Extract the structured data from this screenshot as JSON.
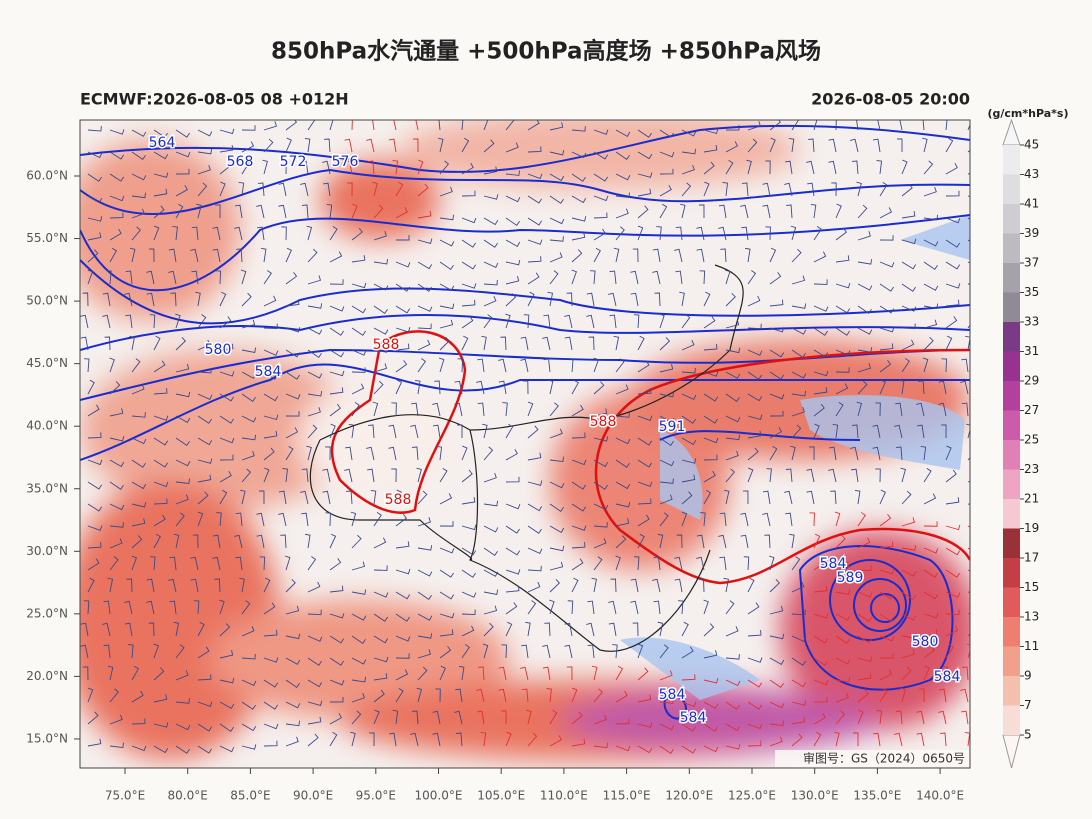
{
  "header": {
    "title": "850hPa水汽通量 +500hPa高度场 +850hPa风场",
    "model_run": "ECMWF:2026-08-05 08 +012H",
    "valid_time": "2026-08-05 20:00"
  },
  "map": {
    "lon_ticks": [
      "75.0°E",
      "80.0°E",
      "85.0°E",
      "90.0°E",
      "95.0°E",
      "100.0°E",
      "105.0°E",
      "110.0°E",
      "115.0°E",
      "120.0°E",
      "125.0°E",
      "130.0°E",
      "135.0°E",
      "140.0°E"
    ],
    "lat_ticks": [
      "60.0°N",
      "55.0°N",
      "50.0°N",
      "45.0°N",
      "40.0°N",
      "35.0°N",
      "30.0°N",
      "25.0°N",
      "20.0°N",
      "15.0°N"
    ],
    "contour_labels": [
      564,
      568,
      572,
      576,
      580,
      584,
      588,
      588,
      588,
      591,
      584,
      589,
      580,
      584,
      584,
      584
    ],
    "review_number": "审图号：GS（2024）0650号"
  },
  "colorbar": {
    "unit": "(g/cm*hPa*s)",
    "ticks": [
      5,
      7,
      9,
      11,
      13,
      15,
      17,
      19,
      21,
      23,
      25,
      27,
      29,
      31,
      33,
      35,
      37,
      39,
      41,
      43,
      45
    ],
    "colors": [
      "#f7ddd6",
      "#f4c0ae",
      "#f2a08c",
      "#ee7f70",
      "#e25b5b",
      "#c63e45",
      "#9a3038",
      "#f6c8d2",
      "#eea5c2",
      "#e080b6",
      "#cc5caa",
      "#b3409d",
      "#993190",
      "#7b3a85",
      "#8f8a93",
      "#a6a2aa",
      "#bdbac0",
      "#cfcdd2",
      "#dedde0",
      "#ecebed"
    ]
  }
}
